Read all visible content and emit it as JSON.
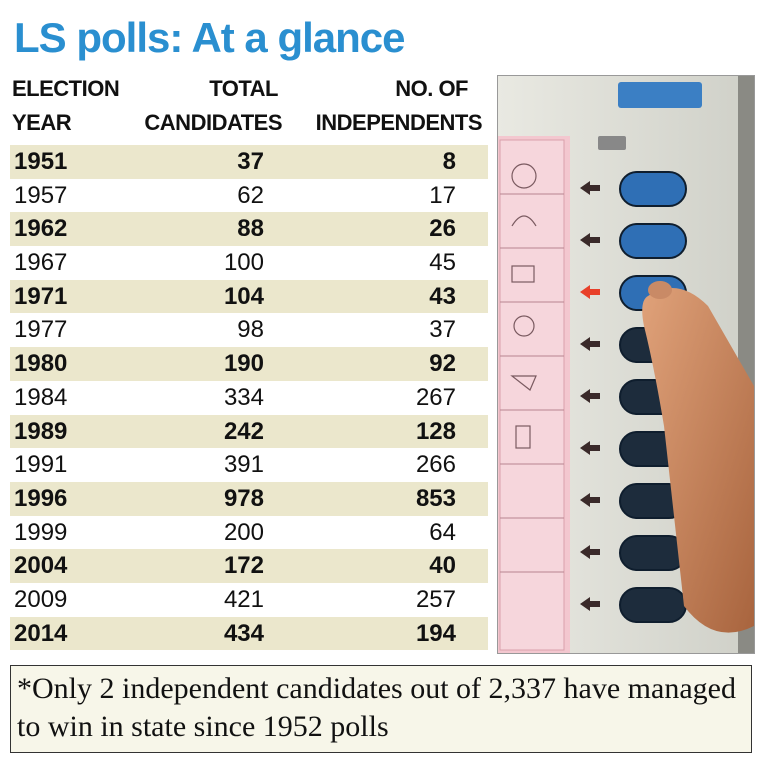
{
  "title": "LS polls: At a glance",
  "headers": {
    "year": [
      "ELECTION",
      "YEAR"
    ],
    "total": [
      "TOTAL",
      "CANDIDATES"
    ],
    "independents": [
      "NO. OF",
      "INDEPENDENTS"
    ]
  },
  "rows": [
    {
      "year": "1951",
      "total": "37",
      "independents": "8"
    },
    {
      "year": "1957",
      "total": "62",
      "independents": "17"
    },
    {
      "year": "1962",
      "total": "88",
      "independents": "26"
    },
    {
      "year": "1967",
      "total": "100",
      "independents": "45"
    },
    {
      "year": "1971",
      "total": "104",
      "independents": "43"
    },
    {
      "year": "1977",
      "total": "98",
      "independents": "37"
    },
    {
      "year": "1980",
      "total": "190",
      "independents": "92"
    },
    {
      "year": "1984",
      "total": "334",
      "independents": "267"
    },
    {
      "year": "1989",
      "total": "242",
      "independents": "128"
    },
    {
      "year": "1991",
      "total": "391",
      "independents": "266"
    },
    {
      "year": "1996",
      "total": "978",
      "independents": "853"
    },
    {
      "year": "1999",
      "total": "200",
      "independents": "64"
    },
    {
      "year": "2004",
      "total": "172",
      "independents": "40"
    },
    {
      "year": "2009",
      "total": "421",
      "independents": "257"
    },
    {
      "year": "2014",
      "total": "434",
      "independents": "194"
    }
  ],
  "note": "*Only 2 independent candidates out of 2,337 have managed to win in state since 1952 polls",
  "colors": {
    "title": "#2a8fd0",
    "row_shade": "#ebe7cc",
    "evm_button": "#2f6fb5"
  }
}
